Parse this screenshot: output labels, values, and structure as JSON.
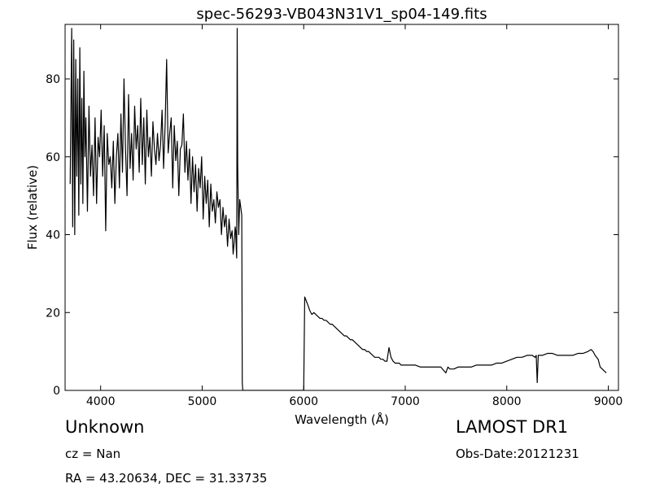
{
  "chart_data": {
    "type": "line",
    "title": "spec-56293-VB043N31V1_sp04-149.fits",
    "xlabel": "Wavelength (Å)",
    "ylabel": "Flux (relative)",
    "xlim": [
      3650,
      9100
    ],
    "ylim": [
      0,
      94
    ],
    "xticks": [
      4000,
      5000,
      6000,
      7000,
      8000,
      9000
    ],
    "xtick_labels": [
      "4000",
      "5000",
      "6000",
      "7000",
      "8000",
      "9000"
    ],
    "yticks": [
      0,
      20,
      40,
      60,
      80
    ],
    "ytick_labels": [
      "0",
      "20",
      "40",
      "60",
      "80"
    ],
    "grid": false,
    "series": [
      {
        "x": [
          3700,
          3715,
          3725,
          3735,
          3745,
          3755,
          3765,
          3775,
          3785,
          3795,
          3805,
          3815,
          3825,
          3835,
          3845,
          3855,
          3870,
          3885,
          3900,
          3915,
          3930,
          3945,
          3960,
          3975,
          3990,
          4005,
          4020,
          4035,
          4050,
          4065,
          4080,
          4095,
          4110,
          4125,
          4140,
          4155,
          4170,
          4185,
          4200,
          4215,
          4230,
          4245,
          4260,
          4275,
          4290,
          4305,
          4320,
          4335,
          4350,
          4365,
          4380,
          4395,
          4410,
          4425,
          4440,
          4455,
          4470,
          4485,
          4500,
          4515,
          4530,
          4545,
          4560,
          4575,
          4590,
          4605,
          4620,
          4635,
          4650,
          4665,
          4680,
          4695,
          4710,
          4725,
          4740,
          4755,
          4770,
          4785,
          4800,
          4815,
          4830,
          4845,
          4860,
          4875,
          4890,
          4905,
          4920,
          4935,
          4950,
          4965,
          4980,
          4995,
          5010,
          5025,
          5040,
          5055,
          5070,
          5085,
          5100,
          5115,
          5130,
          5145,
          5160,
          5175,
          5190,
          5205,
          5220,
          5235,
          5250,
          5265,
          5280,
          5295,
          5305,
          5315,
          5325,
          5330,
          5335,
          5340,
          5345,
          5350,
          5360,
          5370,
          5380,
          5390,
          5395,
          5400,
          5410,
          6000,
          6010,
          6025,
          6040,
          6060,
          6080,
          6100,
          6120,
          6140,
          6160,
          6180,
          6200,
          6220,
          6240,
          6260,
          6280,
          6300,
          6320,
          6340,
          6360,
          6380,
          6400,
          6420,
          6440,
          6460,
          6480,
          6500,
          6520,
          6540,
          6560,
          6580,
          6600,
          6620,
          6640,
          6660,
          6680,
          6700,
          6720,
          6740,
          6760,
          6780,
          6800,
          6820,
          6840,
          6860,
          6870,
          6880,
          6900,
          6920,
          6940,
          6960,
          6980,
          7000,
          7050,
          7100,
          7150,
          7200,
          7250,
          7300,
          7350,
          7400,
          7420,
          7440,
          7480,
          7520,
          7560,
          7600,
          7650,
          7700,
          7750,
          7800,
          7850,
          7900,
          7950,
          8000,
          8050,
          8100,
          8150,
          8200,
          8250,
          8280,
          8290,
          8300,
          8310,
          8320,
          8350,
          8400,
          8450,
          8500,
          8550,
          8600,
          8650,
          8700,
          8750,
          8800,
          8830,
          8850,
          8870,
          8900,
          8920,
          8940,
          8960,
          8980
        ],
        "y": [
          53,
          93,
          42,
          90,
          40,
          85,
          55,
          80,
          45,
          88,
          53,
          75,
          48,
          82,
          60,
          70,
          46,
          73,
          55,
          63,
          50,
          70,
          48,
          65,
          60,
          72,
          55,
          68,
          41,
          66,
          58,
          60,
          52,
          64,
          48,
          60,
          66,
          52,
          71,
          56,
          80,
          62,
          50,
          76,
          57,
          66,
          54,
          73,
          62,
          68,
          56,
          75,
          58,
          70,
          53,
          72,
          60,
          65,
          55,
          69,
          62,
          58,
          66,
          59,
          63,
          72,
          57,
          68,
          85,
          61,
          66,
          70,
          52,
          68,
          59,
          64,
          50,
          62,
          63,
          71,
          56,
          64,
          54,
          62,
          48,
          60,
          51,
          58,
          46,
          57,
          52,
          60,
          44,
          55,
          48,
          54,
          42,
          53,
          46,
          49,
          43,
          51,
          47,
          49,
          40,
          47,
          42,
          45,
          37,
          44,
          39,
          41,
          35,
          38,
          42,
          41,
          37,
          34,
          93,
          58,
          40,
          49,
          47,
          45,
          2,
          0,
          0,
          0,
          24,
          23,
          22,
          20.5,
          19.5,
          20,
          19.5,
          19,
          18.5,
          18.5,
          18,
          18,
          17.5,
          17,
          17,
          16.5,
          16,
          15.5,
          15,
          14.5,
          14,
          14,
          13.5,
          13,
          13,
          12.5,
          12,
          11.5,
          11,
          10.5,
          10.5,
          10,
          10,
          9.5,
          9,
          8.5,
          8.5,
          8.5,
          8,
          8,
          7.5,
          7.5,
          11,
          8.5,
          8,
          7.5,
          7,
          7,
          7,
          6.5,
          6.5,
          6.5,
          6.5,
          6.5,
          6,
          6,
          6,
          6,
          6,
          4.5,
          6,
          5.5,
          5.5,
          6,
          6,
          6,
          6,
          6.5,
          6.5,
          6.5,
          6.5,
          7,
          7,
          7.5,
          8,
          8.5,
          8.5,
          9,
          9,
          8.5,
          9,
          2,
          9,
          9,
          9,
          9.5,
          9.5,
          9,
          9,
          9,
          9,
          9.5,
          9.5,
          10,
          10.5,
          10,
          9,
          8,
          6,
          5.5,
          5,
          4.5
        ]
      }
    ]
  },
  "info": {
    "object_class": "Unknown",
    "redshift": "cz = Nan",
    "coordinates": "RA = 43.20634, DEC = 31.33735",
    "survey": "LAMOST DR1",
    "obs_date": "Obs-Date:20121231"
  }
}
